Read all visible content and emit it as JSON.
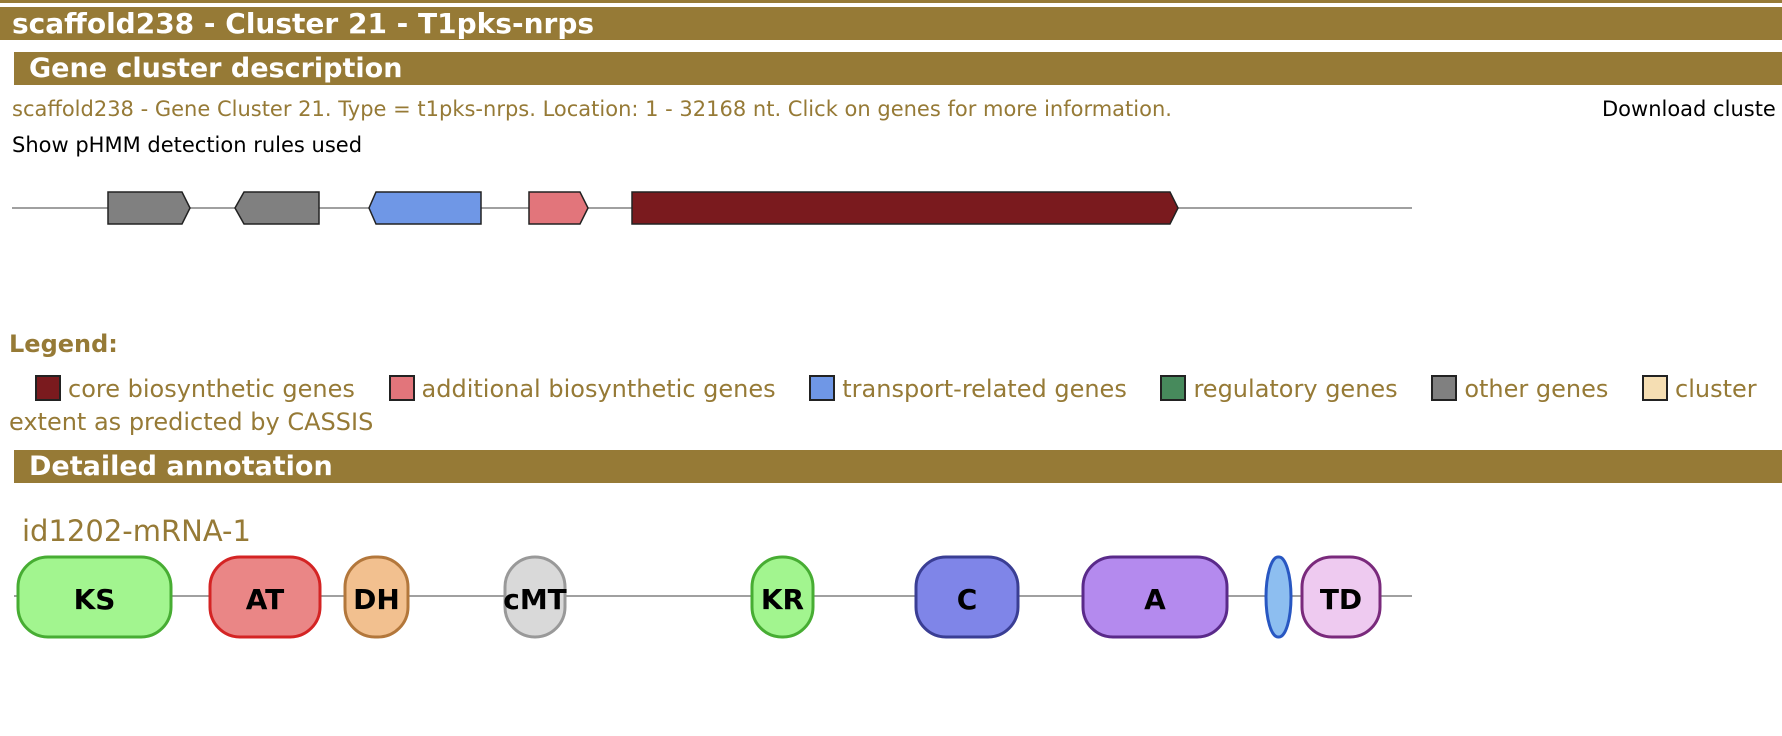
{
  "header": {
    "title": "scaffold238 - Cluster 21 - T1pks-nrps"
  },
  "sections": {
    "description_title": "Gene cluster description",
    "annotation_title": "Detailed annotation"
  },
  "description": {
    "text": "scaffold238 - Gene Cluster 21. Type = t1pks-nrps. Location: 1 - 32168 nt. Click on genes for more information.",
    "download_text": "Download cluste",
    "rules_link": "Show pHMM detection rules used"
  },
  "genes": [
    {
      "category": "other",
      "direction": "forward",
      "color": "#808080"
    },
    {
      "category": "other",
      "direction": "reverse",
      "color": "#808080"
    },
    {
      "category": "transport",
      "direction": "reverse",
      "color": "#6f97e6"
    },
    {
      "category": "additional",
      "direction": "forward",
      "color": "#e2757b"
    },
    {
      "category": "core",
      "direction": "forward",
      "color": "#7a1a1e"
    }
  ],
  "legend": {
    "title": "Legend:",
    "items": [
      {
        "label": "core biosynthetic genes",
        "color": "#7a1a1e"
      },
      {
        "label": "additional biosynthetic genes",
        "color": "#e2757b"
      },
      {
        "label": "transport-related genes",
        "color": "#6f97e6"
      },
      {
        "label": "regulatory genes",
        "color": "#478a5c"
      },
      {
        "label": "other genes",
        "color": "#808080"
      },
      {
        "label": "cluster extent as predicted by CASSIS",
        "color": "#f5deb3"
      }
    ]
  },
  "annotation": {
    "mrna_label": "id1202-mRNA-1",
    "domains": [
      {
        "label": "KS",
        "fill": "#a2f58f",
        "stroke": "#47ad33"
      },
      {
        "label": "AT",
        "fill": "#ea8686",
        "stroke": "#d42424"
      },
      {
        "label": "DH",
        "fill": "#f2c08f",
        "stroke": "#b3773b"
      },
      {
        "label": "cMT",
        "fill": "#d9d9d9",
        "stroke": "#999999"
      },
      {
        "label": "KR",
        "fill": "#a2f58f",
        "stroke": "#47ad33"
      },
      {
        "label": "C",
        "fill": "#7f85e8",
        "stroke": "#3a3e94"
      },
      {
        "label": "A",
        "fill": "#b48aee",
        "stroke": "#5a2a8a"
      },
      {
        "label": "",
        "fill": "#8dbef0",
        "stroke": "#2857c2"
      },
      {
        "label": "TD",
        "fill": "#eecaf0",
        "stroke": "#7a2a7c"
      }
    ]
  }
}
